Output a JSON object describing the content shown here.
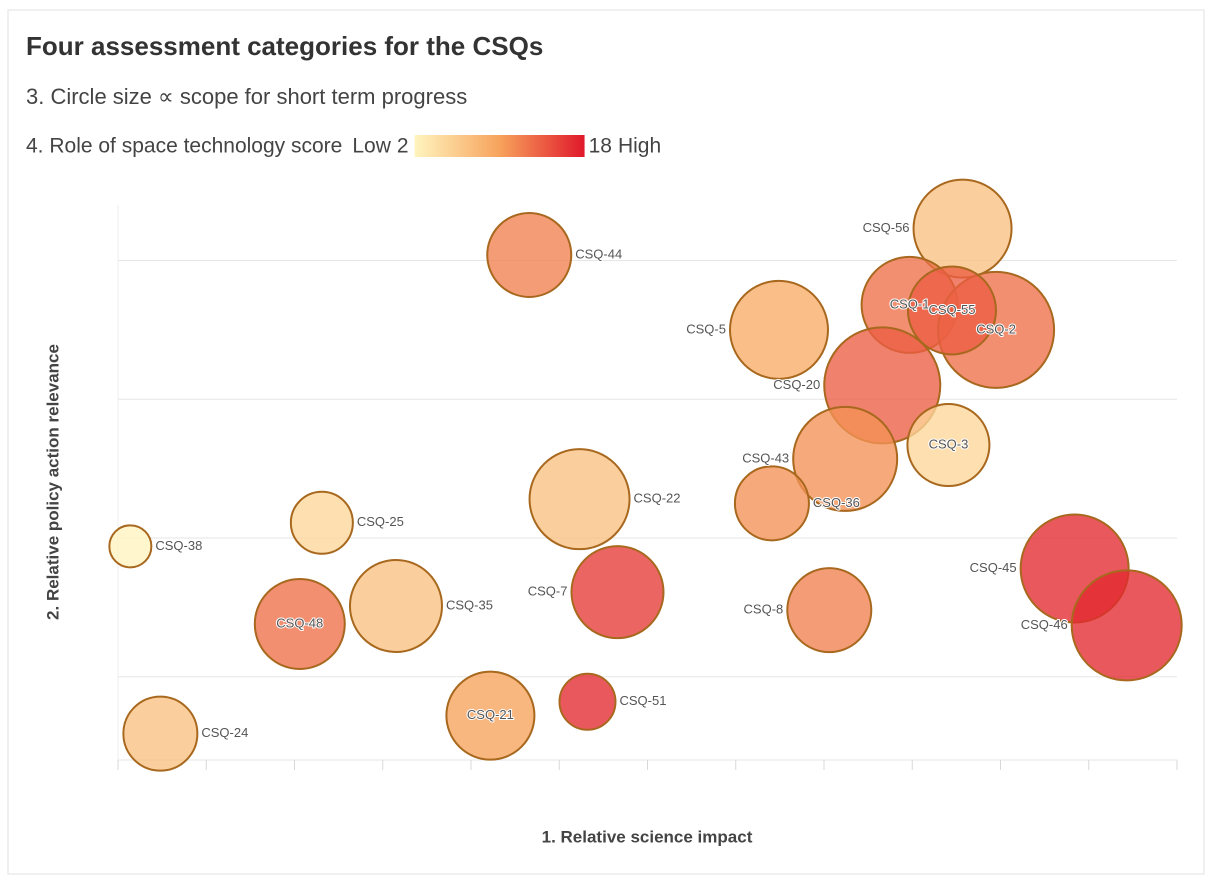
{
  "chart_data": {
    "type": "bubble",
    "title": "Four assessment categories for the CSQs",
    "subtitle": "3. Circle size ∝ scope for short term progress",
    "color_legend": {
      "title": "4. Role of space technology score",
      "low_label": "Low",
      "high_label": "High",
      "min": 2,
      "max": 18,
      "colors": [
        "#fff4bf",
        "#f7a35c",
        "#e0182a"
      ]
    },
    "x_label": "1. Relative science impact",
    "y_label": "2. Relative policy action relevance",
    "xlim": [
      0,
      12
    ],
    "xticks": [
      0,
      1,
      2,
      3,
      4,
      5,
      6,
      7,
      8,
      9,
      10,
      11,
      12
    ],
    "ylim": [
      0.4,
      4.4
    ],
    "yticks": [
      1,
      2,
      3,
      4
    ],
    "grid": true,
    "points": [
      {
        "label": "CSQ-56",
        "x": 9.57,
        "y": 4.23,
        "size": 49,
        "score": 7
      },
      {
        "label": "CSQ-1",
        "x": 8.97,
        "y": 3.68,
        "size": 48,
        "score": 13
      },
      {
        "label": "CSQ-2",
        "x": 9.95,
        "y": 3.5,
        "size": 58,
        "score": 13
      },
      {
        "label": "CSQ-55",
        "x": 9.45,
        "y": 3.64,
        "size": 44,
        "score": 14
      },
      {
        "label": "CSQ-5",
        "x": 7.49,
        "y": 3.5,
        "size": 49,
        "score": 9
      },
      {
        "label": "CSQ-20",
        "x": 8.66,
        "y": 3.1,
        "size": 58,
        "score": 14
      },
      {
        "label": "CSQ-3",
        "x": 9.41,
        "y": 2.67,
        "size": 41,
        "score": 5
      },
      {
        "label": "CSQ-43",
        "x": 8.24,
        "y": 2.57,
        "size": 52,
        "score": 11
      },
      {
        "label": "CSQ-36",
        "x": 7.41,
        "y": 2.25,
        "size": 37,
        "score": 11
      },
      {
        "label": "CSQ-22",
        "x": 5.23,
        "y": 2.28,
        "size": 50,
        "score": 7
      },
      {
        "label": "CSQ-44",
        "x": 4.66,
        "y": 4.04,
        "size": 42,
        "score": 12
      },
      {
        "label": "CSQ-25",
        "x": 2.31,
        "y": 2.11,
        "size": 31,
        "score": 5
      },
      {
        "label": "CSQ-38",
        "x": 0.14,
        "y": 1.94,
        "size": 21,
        "score": 2
      },
      {
        "label": "CSQ-48",
        "x": 2.06,
        "y": 1.38,
        "size": 45,
        "score": 13
      },
      {
        "label": "CSQ-35",
        "x": 3.15,
        "y": 1.51,
        "size": 46,
        "score": 7
      },
      {
        "label": "CSQ-7",
        "x": 5.66,
        "y": 1.61,
        "size": 46,
        "score": 16
      },
      {
        "label": "CSQ-8",
        "x": 8.06,
        "y": 1.48,
        "size": 42,
        "score": 12
      },
      {
        "label": "CSQ-45",
        "x": 10.84,
        "y": 1.78,
        "size": 54,
        "score": 17
      },
      {
        "label": "CSQ-46",
        "x": 11.43,
        "y": 1.37,
        "size": 55,
        "score": 17
      },
      {
        "label": "CSQ-24",
        "x": 0.48,
        "y": 0.59,
        "size": 37,
        "score": 7
      },
      {
        "label": "CSQ-21",
        "x": 4.22,
        "y": 0.72,
        "size": 44,
        "score": 10
      },
      {
        "label": "CSQ-51",
        "x": 5.32,
        "y": 0.82,
        "size": 28,
        "score": 17
      }
    ]
  }
}
